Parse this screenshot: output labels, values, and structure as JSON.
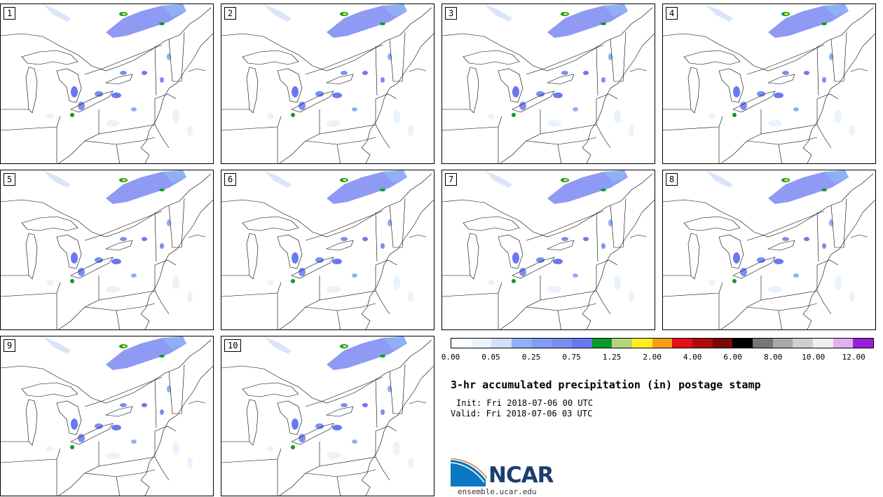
{
  "panels": [
    {
      "label": "1"
    },
    {
      "label": "2"
    },
    {
      "label": "3"
    },
    {
      "label": "4"
    },
    {
      "label": "5"
    },
    {
      "label": "6"
    },
    {
      "label": "7"
    },
    {
      "label": "8"
    },
    {
      "label": "9"
    },
    {
      "label": "10"
    }
  ],
  "colorbar": {
    "colors": [
      "#ffffff",
      "#eaf3fc",
      "#cfe0f8",
      "#8fb0f5",
      "#7f9ef4",
      "#7b8ef2",
      "#6a78f0",
      "#0a9a2b",
      "#b5d57a",
      "#ffee22",
      "#fa9c1a",
      "#e11012",
      "#b20a0a",
      "#7a0808",
      "#000000",
      "#777777",
      "#a9a9a9",
      "#cfcfcf",
      "#efefef",
      "#e0b0f0",
      "#9b1ed9"
    ],
    "tick_labels": [
      "0.00",
      "0.05",
      "0.25",
      "0.75",
      "1.25",
      "2.00",
      "4.00",
      "6.00",
      "8.00",
      "10.00",
      "12.00"
    ]
  },
  "title": "3-hr accumulated precipitation (in) postage stamp",
  "init": "Init: Fri 2018-07-06 00 UTC",
  "valid": "Valid: Fri 2018-07-06 03 UTC",
  "logo": {
    "text": "NCAR",
    "site": "ensemble.ucar.edu"
  }
}
